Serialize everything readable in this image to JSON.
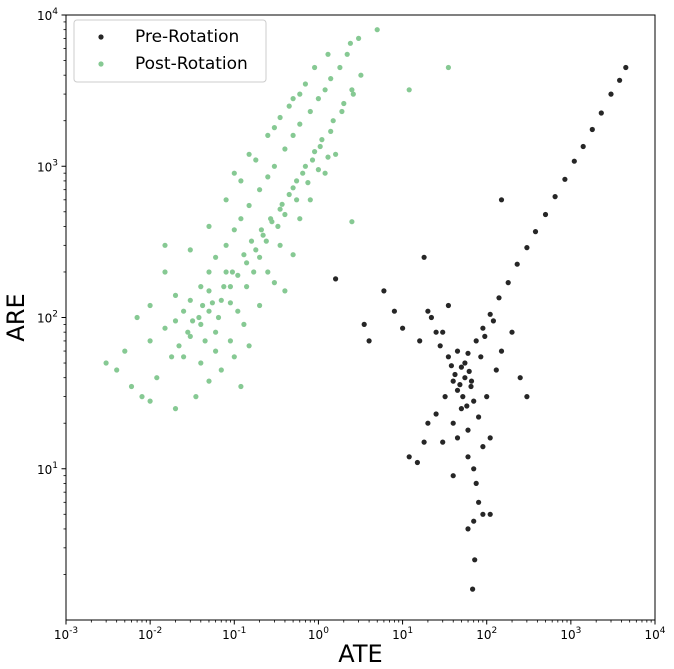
{
  "chart_data": {
    "type": "scatter",
    "x_scale": "log",
    "y_scale": "log",
    "xlabel": "ATE",
    "ylabel": "ARE",
    "xlim": [
      0.001,
      10000
    ],
    "ylim": [
      1,
      10000
    ],
    "x_ticks": [
      {
        "base": "10",
        "exp": "-3"
      },
      {
        "base": "10",
        "exp": "-2"
      },
      {
        "base": "10",
        "exp": "-1"
      },
      {
        "base": "10",
        "exp": "0"
      },
      {
        "base": "10",
        "exp": "1"
      },
      {
        "base": "10",
        "exp": "2"
      },
      {
        "base": "10",
        "exp": "3"
      },
      {
        "base": "10",
        "exp": "4"
      }
    ],
    "y_ticks": [
      {
        "base": "10",
        "exp": "1"
      },
      {
        "base": "10",
        "exp": "2"
      },
      {
        "base": "10",
        "exp": "3"
      },
      {
        "base": "10",
        "exp": "4"
      }
    ],
    "legend_position": "top-left",
    "grid": false,
    "series": [
      {
        "name": "Pre-Rotation",
        "color": "#262626",
        "points": [
          [
            4500,
            4500
          ],
          [
            3800,
            3700
          ],
          [
            3000,
            3000
          ],
          [
            2300,
            2250
          ],
          [
            1800,
            1750
          ],
          [
            1400,
            1350
          ],
          [
            1100,
            1080
          ],
          [
            850,
            820
          ],
          [
            650,
            630
          ],
          [
            500,
            480
          ],
          [
            380,
            370
          ],
          [
            300,
            290
          ],
          [
            230,
            225
          ],
          [
            180,
            170
          ],
          [
            140,
            135
          ],
          [
            110,
            105
          ],
          [
            90,
            85
          ],
          [
            75,
            70
          ],
          [
            60,
            58
          ],
          [
            50,
            47
          ],
          [
            40,
            38
          ],
          [
            32,
            30
          ],
          [
            25,
            23
          ],
          [
            20,
            20
          ],
          [
            150,
            600
          ],
          [
            1.6,
            180
          ],
          [
            18,
            250
          ],
          [
            6,
            150
          ],
          [
            3.5,
            90
          ],
          [
            4,
            70
          ],
          [
            22,
            100
          ],
          [
            30,
            80
          ],
          [
            35,
            120
          ],
          [
            45,
            60
          ],
          [
            55,
            40
          ],
          [
            65,
            35
          ],
          [
            70,
            28
          ],
          [
            50,
            25
          ],
          [
            40,
            20
          ],
          [
            30,
            15
          ],
          [
            60,
            18
          ],
          [
            80,
            22
          ],
          [
            100,
            30
          ],
          [
            150,
            60
          ],
          [
            200,
            80
          ],
          [
            130,
            45
          ],
          [
            90,
            14
          ],
          [
            70,
            10
          ],
          [
            75,
            8
          ],
          [
            80,
            6
          ],
          [
            70,
            4.5
          ],
          [
            90,
            5
          ],
          [
            110,
            5
          ],
          [
            60,
            4
          ],
          [
            72,
            2.5
          ],
          [
            68,
            1.6
          ],
          [
            12,
            12
          ],
          [
            15,
            11
          ],
          [
            18,
            15
          ],
          [
            45,
            33
          ],
          [
            55,
            50
          ],
          [
            42,
            42
          ],
          [
            48,
            36
          ],
          [
            62,
            44
          ],
          [
            38,
            48
          ],
          [
            52,
            30
          ],
          [
            58,
            26
          ],
          [
            66,
            38
          ],
          [
            35,
            55
          ],
          [
            28,
            65
          ],
          [
            25,
            80
          ],
          [
            85,
            55
          ],
          [
            95,
            75
          ],
          [
            120,
            95
          ],
          [
            40,
            9
          ],
          [
            110,
            16
          ],
          [
            250,
            40
          ],
          [
            300,
            30
          ],
          [
            20,
            110
          ],
          [
            8,
            110
          ],
          [
            10,
            85
          ],
          [
            16,
            70
          ],
          [
            60,
            12
          ],
          [
            45,
            16
          ]
        ]
      },
      {
        "name": "Post-Rotation",
        "color": "#86c993",
        "points": [
          [
            5,
            8000
          ],
          [
            3,
            7000
          ],
          [
            2.2,
            5500
          ],
          [
            1.8,
            4500
          ],
          [
            1.4,
            3800
          ],
          [
            1.2,
            3200
          ],
          [
            1.0,
            2800
          ],
          [
            0.8,
            2300
          ],
          [
            0.6,
            1900
          ],
          [
            0.5,
            1600
          ],
          [
            0.4,
            1300
          ],
          [
            0.3,
            1000
          ],
          [
            0.25,
            850
          ],
          [
            0.2,
            700
          ],
          [
            0.15,
            550
          ],
          [
            0.12,
            450
          ],
          [
            0.1,
            380
          ],
          [
            0.08,
            300
          ],
          [
            0.06,
            250
          ],
          [
            0.05,
            200
          ],
          [
            0.04,
            160
          ],
          [
            0.03,
            130
          ],
          [
            0.025,
            110
          ],
          [
            0.02,
            95
          ],
          [
            0.015,
            85
          ],
          [
            0.01,
            70
          ],
          [
            0.005,
            60
          ],
          [
            0.003,
            50
          ],
          [
            0.004,
            45
          ],
          [
            0.006,
            35
          ],
          [
            0.008,
            30
          ],
          [
            0.012,
            40
          ],
          [
            0.018,
            55
          ],
          [
            0.022,
            65
          ],
          [
            0.03,
            75
          ],
          [
            0.04,
            90
          ],
          [
            0.05,
            110
          ],
          [
            0.07,
            130
          ],
          [
            0.09,
            160
          ],
          [
            0.11,
            190
          ],
          [
            0.14,
            230
          ],
          [
            0.18,
            280
          ],
          [
            0.22,
            350
          ],
          [
            0.28,
            430
          ],
          [
            0.35,
            520
          ],
          [
            0.45,
            650
          ],
          [
            0.55,
            800
          ],
          [
            0.7,
            1000
          ],
          [
            0.9,
            1250
          ],
          [
            1.1,
            1500
          ],
          [
            1.5,
            2000
          ],
          [
            2.0,
            2600
          ],
          [
            2.5,
            3200
          ],
          [
            3.2,
            4000
          ],
          [
            0.05,
            400
          ],
          [
            0.08,
            600
          ],
          [
            0.12,
            800
          ],
          [
            0.18,
            1100
          ],
          [
            0.3,
            1800
          ],
          [
            0.45,
            2500
          ],
          [
            0.7,
            3500
          ],
          [
            0.04,
            50
          ],
          [
            0.06,
            60
          ],
          [
            0.09,
            70
          ],
          [
            0.13,
            90
          ],
          [
            0.2,
            120
          ],
          [
            0.3,
            170
          ],
          [
            0.5,
            260
          ],
          [
            0.02,
            140
          ],
          [
            0.015,
            200
          ],
          [
            0.03,
            280
          ],
          [
            0.01,
            120
          ],
          [
            0.035,
            30
          ],
          [
            0.05,
            38
          ],
          [
            0.07,
            45
          ],
          [
            0.1,
            55
          ],
          [
            0.15,
            65
          ],
          [
            0.12,
            35
          ],
          [
            0.02,
            25
          ],
          [
            0.01,
            28
          ],
          [
            0.25,
            200
          ],
          [
            0.35,
            300
          ],
          [
            0.6,
            450
          ],
          [
            0.8,
            600
          ],
          [
            1.2,
            900
          ],
          [
            1.6,
            1200
          ],
          [
            0.4,
            150
          ],
          [
            0.15,
            1200
          ],
          [
            0.25,
            1600
          ],
          [
            0.1,
            900
          ],
          [
            0.35,
            2100
          ],
          [
            0.5,
            2800
          ],
          [
            0.6,
            3000
          ],
          [
            0.9,
            4500
          ],
          [
            1.3,
            5500
          ],
          [
            2.4,
            6500
          ],
          [
            2.5,
            430
          ],
          [
            12,
            3200
          ],
          [
            35,
            4500
          ],
          [
            0.015,
            300
          ],
          [
            0.007,
            100
          ],
          [
            0.05,
            150
          ],
          [
            0.08,
            200
          ],
          [
            0.06,
            80
          ],
          [
            0.025,
            55
          ],
          [
            0.045,
            70
          ],
          [
            0.065,
            100
          ],
          [
            0.09,
            125
          ],
          [
            0.11,
            110
          ],
          [
            0.14,
            160
          ],
          [
            0.17,
            200
          ],
          [
            0.2,
            250
          ],
          [
            0.24,
            320
          ],
          [
            0.33,
            400
          ],
          [
            0.4,
            480
          ],
          [
            0.55,
            600
          ],
          [
            0.75,
            780
          ],
          [
            1.0,
            950
          ],
          [
            1.3,
            1150
          ],
          [
            0.032,
            95
          ],
          [
            0.042,
            120
          ],
          [
            0.055,
            125
          ],
          [
            0.075,
            160
          ],
          [
            0.095,
            200
          ],
          [
            0.13,
            260
          ],
          [
            0.16,
            320
          ],
          [
            0.21,
            380
          ],
          [
            0.27,
            450
          ],
          [
            0.37,
            560
          ],
          [
            0.5,
            720
          ],
          [
            0.65,
            900
          ],
          [
            0.85,
            1100
          ],
          [
            1.05,
            1350
          ],
          [
            1.4,
            1700
          ],
          [
            1.9,
            2300
          ],
          [
            2.6,
            3000
          ],
          [
            0.028,
            80
          ],
          [
            0.038,
            100
          ]
        ]
      }
    ]
  }
}
